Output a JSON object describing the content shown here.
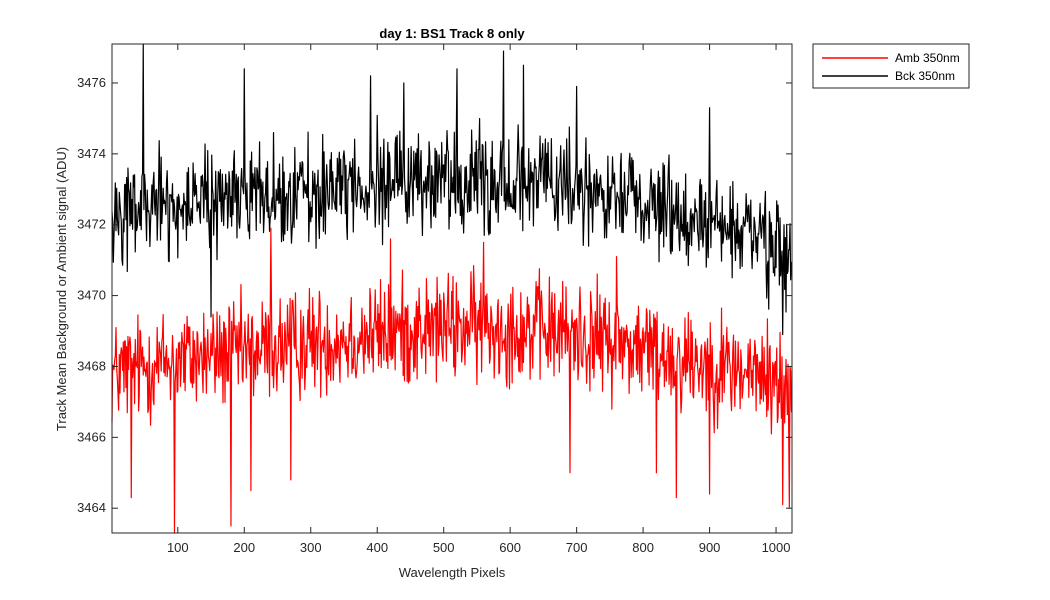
{
  "chart_data": {
    "type": "line",
    "title": "day 1: BS1   Track 8 only",
    "xlabel": "Wavelength Pixels",
    "ylabel": "Track Mean Background or Ambient signal (ADU)",
    "xlim": [
      1,
      1024
    ],
    "ylim": [
      3463.3,
      3477.1
    ],
    "xticks": [
      100,
      200,
      300,
      400,
      500,
      600,
      700,
      800,
      900,
      1000
    ],
    "yticks": [
      3464,
      3466,
      3468,
      3470,
      3472,
      3474,
      3476
    ],
    "grid": false,
    "legend_position": "outside-top-right",
    "series": [
      {
        "name": "Amb 350nm",
        "color": "#ff0000",
        "trend_x": [
          1,
          50,
          100,
          200,
          300,
          400,
          500,
          600,
          700,
          800,
          900,
          1000,
          1024
        ],
        "trend_y": [
          3467.8,
          3468.0,
          3468.2,
          3468.4,
          3468.7,
          3468.9,
          3469.1,
          3469.1,
          3468.9,
          3468.5,
          3468.1,
          3467.6,
          3467.2
        ],
        "noise_amplitude": 1.4,
        "spikes": [
          {
            "x": 30,
            "y": 3464.3
          },
          {
            "x": 95,
            "y": 3463.3
          },
          {
            "x": 180,
            "y": 3463.5
          },
          {
            "x": 210,
            "y": 3464.5
          },
          {
            "x": 240,
            "y": 3471.9
          },
          {
            "x": 270,
            "y": 3464.8
          },
          {
            "x": 420,
            "y": 3471.6
          },
          {
            "x": 560,
            "y": 3471.5
          },
          {
            "x": 690,
            "y": 3465.0
          },
          {
            "x": 760,
            "y": 3471.1
          },
          {
            "x": 820,
            "y": 3465.0
          },
          {
            "x": 850,
            "y": 3464.3
          },
          {
            "x": 900,
            "y": 3464.4
          },
          {
            "x": 1010,
            "y": 3464.1
          },
          {
            "x": 1020,
            "y": 3464.0
          }
        ]
      },
      {
        "name": "Bck 350nm",
        "color": "#000000",
        "trend_x": [
          1,
          50,
          100,
          200,
          300,
          400,
          500,
          600,
          700,
          800,
          900,
          1000,
          1024
        ],
        "trend_y": [
          3472.2,
          3472.5,
          3472.6,
          3472.8,
          3473.0,
          3473.2,
          3473.3,
          3473.3,
          3473.0,
          3472.6,
          3472.0,
          3471.4,
          3471.0
        ],
        "noise_amplitude": 1.3,
        "spikes": [
          {
            "x": 48,
            "y": 3477.1
          },
          {
            "x": 200,
            "y": 3476.4
          },
          {
            "x": 390,
            "y": 3476.2
          },
          {
            "x": 440,
            "y": 3476.0
          },
          {
            "x": 520,
            "y": 3476.4
          },
          {
            "x": 590,
            "y": 3476.9
          },
          {
            "x": 620,
            "y": 3476.5
          },
          {
            "x": 700,
            "y": 3475.9
          },
          {
            "x": 900,
            "y": 3475.3
          },
          {
            "x": 150,
            "y": 3469.4
          },
          {
            "x": 1010,
            "y": 3468.9
          }
        ]
      }
    ]
  }
}
